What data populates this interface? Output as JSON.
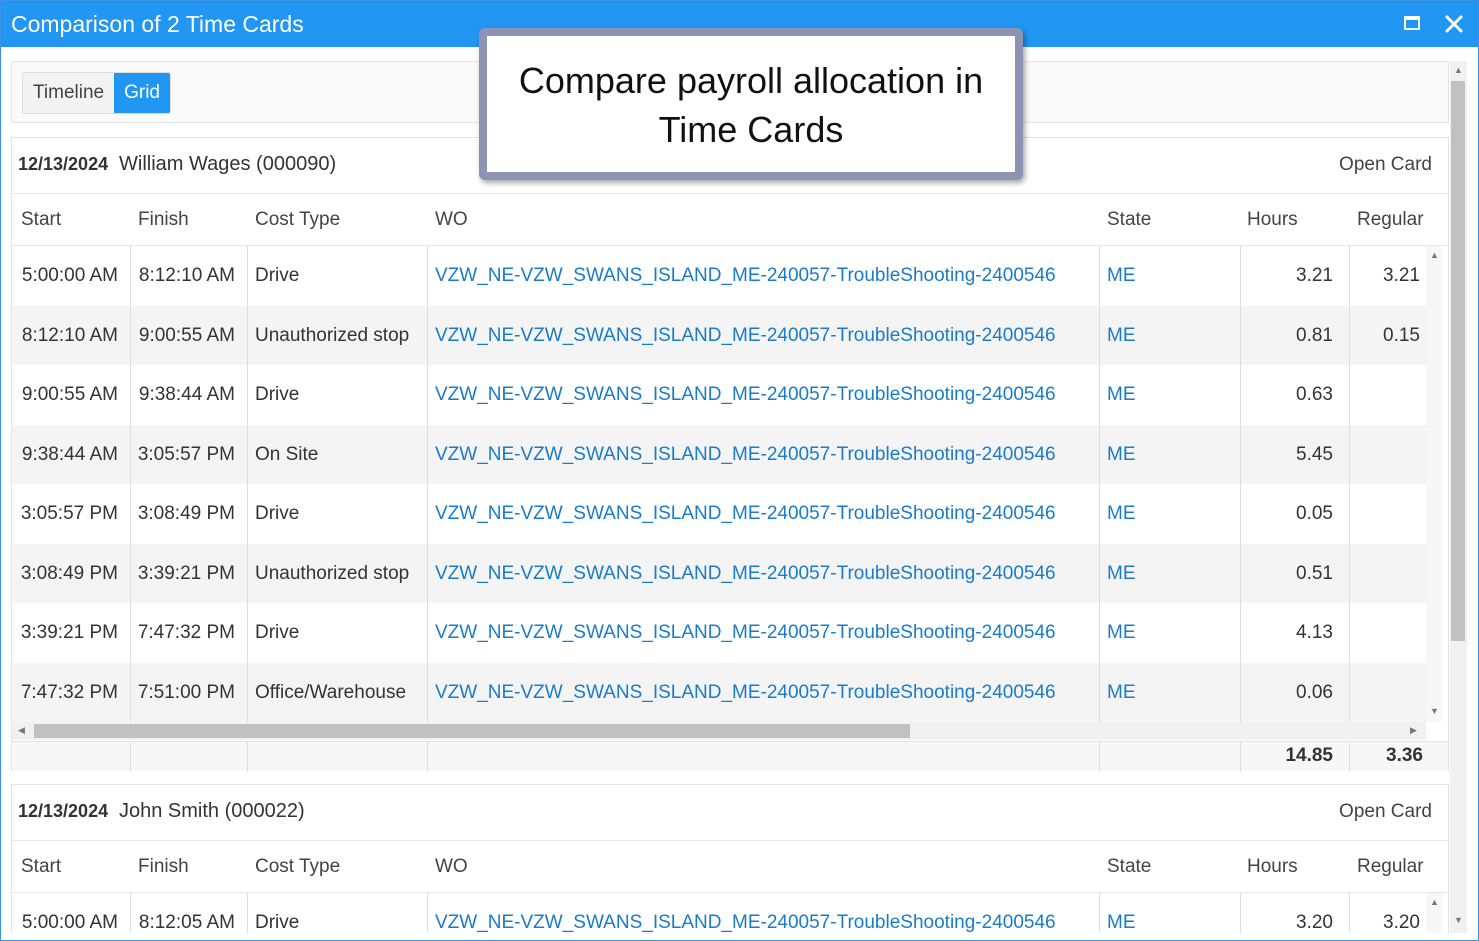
{
  "window": {
    "title": "Comparison of 2 Time Cards"
  },
  "view_toggle": {
    "timeline": "Timeline",
    "grid": "Grid",
    "active": "Grid"
  },
  "callout": {
    "text": "Compare payroll allocation in Time Cards"
  },
  "columns": {
    "start": "Start",
    "finish": "Finish",
    "cost_type": "Cost Type",
    "wo": "WO",
    "state": "State",
    "hours": "Hours",
    "regular": "Regular"
  },
  "cards": [
    {
      "date": "12/13/2024",
      "employee": "William Wages (000090)",
      "open_label": "Open Card",
      "rows": [
        {
          "start": "5:00:00 AM",
          "finish": "8:12:10 AM",
          "cost_type": "Drive",
          "wo": "VZW_NE-VZW_SWANS_ISLAND_ME-240057-TroubleShooting-2400546",
          "state": "ME",
          "hours": "3.21",
          "regular": "3.21"
        },
        {
          "start": "8:12:10 AM",
          "finish": "9:00:55 AM",
          "cost_type": "Unauthorized stop",
          "wo": "VZW_NE-VZW_SWANS_ISLAND_ME-240057-TroubleShooting-2400546",
          "state": "ME",
          "hours": "0.81",
          "regular": "0.15"
        },
        {
          "start": "9:00:55 AM",
          "finish": "9:38:44 AM",
          "cost_type": "Drive",
          "wo": "VZW_NE-VZW_SWANS_ISLAND_ME-240057-TroubleShooting-2400546",
          "state": "ME",
          "hours": "0.63",
          "regular": ""
        },
        {
          "start": "9:38:44 AM",
          "finish": "3:05:57 PM",
          "cost_type": "On Site",
          "wo": "VZW_NE-VZW_SWANS_ISLAND_ME-240057-TroubleShooting-2400546",
          "state": "ME",
          "hours": "5.45",
          "regular": ""
        },
        {
          "start": "3:05:57 PM",
          "finish": "3:08:49 PM",
          "cost_type": "Drive",
          "wo": "VZW_NE-VZW_SWANS_ISLAND_ME-240057-TroubleShooting-2400546",
          "state": "ME",
          "hours": "0.05",
          "regular": ""
        },
        {
          "start": "3:08:49 PM",
          "finish": "3:39:21 PM",
          "cost_type": "Unauthorized stop",
          "wo": "VZW_NE-VZW_SWANS_ISLAND_ME-240057-TroubleShooting-2400546",
          "state": "ME",
          "hours": "0.51",
          "regular": ""
        },
        {
          "start": "3:39:21 PM",
          "finish": "7:47:32 PM",
          "cost_type": "Drive",
          "wo": "VZW_NE-VZW_SWANS_ISLAND_ME-240057-TroubleShooting-2400546",
          "state": "ME",
          "hours": "4.13",
          "regular": ""
        },
        {
          "start": "7:47:32 PM",
          "finish": "7:51:00 PM",
          "cost_type": "Office/Warehouse",
          "wo": "VZW_NE-VZW_SWANS_ISLAND_ME-240057-TroubleShooting-2400546",
          "state": "ME",
          "hours": "0.06",
          "regular": ""
        }
      ],
      "totals": {
        "hours": "14.85",
        "regular": "3.36"
      }
    },
    {
      "date": "12/13/2024",
      "employee": "John Smith (000022)",
      "open_label": "Open Card",
      "rows": [
        {
          "start": "5:00:00 AM",
          "finish": "8:12:05 AM",
          "cost_type": "Drive",
          "wo": "VZW_NE-VZW_SWANS_ISLAND_ME-240057-TroubleShooting-2400546",
          "state": "ME",
          "hours": "3.20",
          "regular": "3.20"
        }
      ]
    }
  ],
  "colors": {
    "accent": "#2196f3",
    "link": "#1a7bc9",
    "callout_border": "#8c93b4"
  }
}
